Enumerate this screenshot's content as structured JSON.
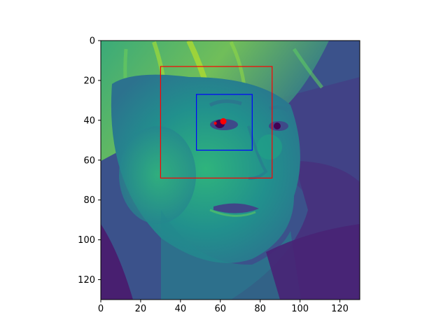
{
  "figure": {
    "image": {
      "description_colormap": "viridis",
      "x_range": [
        0,
        130
      ],
      "y_range": [
        130,
        0
      ]
    },
    "x_ticks": [
      "0",
      "20",
      "40",
      "60",
      "80",
      "100",
      "120"
    ],
    "y_ticks": [
      "0",
      "20",
      "40",
      "60",
      "80",
      "100",
      "120"
    ],
    "x_tick_values": [
      0,
      20,
      40,
      60,
      80,
      100,
      120
    ],
    "y_tick_values": [
      0,
      20,
      40,
      60,
      80,
      100,
      120
    ],
    "overlays": {
      "outer_box": {
        "color": "#ff0000",
        "x0": 30,
        "y0": 13,
        "x1": 86,
        "y1": 69
      },
      "inner_box": {
        "color": "#0000ff",
        "x0": 48,
        "y0": 27,
        "x1": 76,
        "y1": 55
      },
      "point_large": {
        "color": "#ff0000",
        "x": 61.5,
        "y": 40.5
      },
      "point_small": {
        "color": "#ff0000",
        "x": 57.5,
        "y": 41.5
      }
    }
  }
}
